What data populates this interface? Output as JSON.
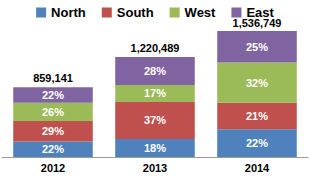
{
  "chart_data": {
    "type": "bar",
    "stacked": true,
    "data_labels": true,
    "tick_labels": "x",
    "legend": "top",
    "categories": [
      "2012",
      "2013",
      "2014"
    ],
    "totals": [
      859141,
      1220489,
      1536749
    ],
    "total_labels": [
      "859,141",
      "1,220,489",
      "1,536,749"
    ],
    "series": [
      {
        "name": "North",
        "color": "#4f81bd",
        "values": [
          22,
          18,
          22
        ],
        "value_labels": [
          "22%",
          "18%",
          "22%"
        ]
      },
      {
        "name": "South",
        "color": "#c0504d",
        "values": [
          29,
          37,
          21
        ],
        "value_labels": [
          "29%",
          "37%",
          "21%"
        ]
      },
      {
        "name": "West",
        "color": "#9bbb59",
        "values": [
          26,
          17,
          32
        ],
        "value_labels": [
          "26%",
          "17%",
          "32%"
        ]
      },
      {
        "name": "East",
        "color": "#8064a2",
        "values": [
          22,
          28,
          25
        ],
        "value_labels": [
          "22%",
          "28%",
          "25%"
        ]
      }
    ]
  }
}
